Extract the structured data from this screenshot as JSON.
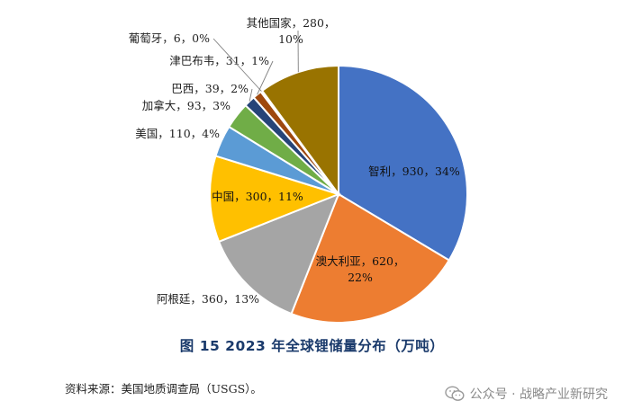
{
  "chart_data": {
    "type": "pie",
    "title": "图 15   2023 年全球锂储量分布（万吨）",
    "slices": [
      {
        "name": "智利",
        "value": 930,
        "percent": "34%",
        "color": "#4472C4",
        "label_lines": [
          "智利，930，34%"
        ]
      },
      {
        "name": "澳大利亚",
        "value": 620,
        "percent": "22%",
        "color": "#ED7D31",
        "label_lines": [
          "澳大利亚，620，",
          "22%"
        ]
      },
      {
        "name": "阿根廷",
        "value": 360,
        "percent": "13%",
        "color": "#A5A5A5",
        "label_lines": [
          "阿根廷，360，13%"
        ]
      },
      {
        "name": "中国",
        "value": 300,
        "percent": "11%",
        "color": "#FFC000",
        "label_lines": [
          "中国，300，11%"
        ]
      },
      {
        "name": "美国",
        "value": 110,
        "percent": "4%",
        "color": "#5B9BD5",
        "label_lines": [
          "美国，110，4%"
        ]
      },
      {
        "name": "加拿大",
        "value": 93,
        "percent": "3%",
        "color": "#70AD47",
        "label_lines": [
          "加拿大，93，3%"
        ]
      },
      {
        "name": "巴西",
        "value": 39,
        "percent": "2%",
        "color": "#264478",
        "label_lines": [
          "巴西，39，2%"
        ]
      },
      {
        "name": "津巴布韦",
        "value": 31,
        "percent": "1%",
        "color": "#9E480E",
        "label_lines": [
          "津巴布韦，31，1%"
        ]
      },
      {
        "name": "葡萄牙",
        "value": 6,
        "percent": "0%",
        "color": "#636363",
        "label_lines": [
          "葡萄牙，6，0%"
        ]
      },
      {
        "name": "其他国家",
        "value": 280,
        "percent": "10%",
        "color": "#997300",
        "label_lines": [
          "其他国家，280，",
          "10%"
        ]
      }
    ]
  },
  "source_note": "资料来源：美国地质调查局（USGS）。",
  "watermark": "公众号 · 战略产业新研究"
}
